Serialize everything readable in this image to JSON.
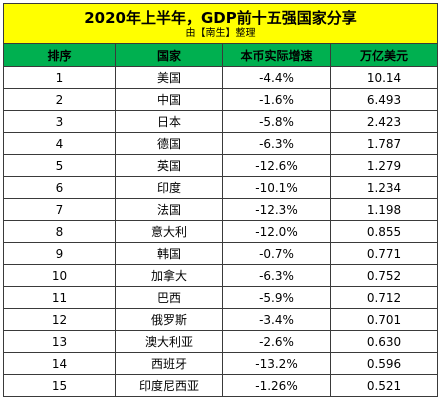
{
  "chart_data": {
    "type": "table",
    "title": "2020年上半年，GDP前十五强国家分享",
    "subtitle": "由【南生】整理",
    "columns": [
      "排序",
      "国家",
      "本币实际增速",
      "万亿美元"
    ],
    "rows": [
      {
        "rank": "1",
        "country": "美国",
        "growth": "-4.4%",
        "gdp": "10.14"
      },
      {
        "rank": "2",
        "country": "中国",
        "growth": "-1.6%",
        "gdp": "6.493"
      },
      {
        "rank": "3",
        "country": "日本",
        "growth": "-5.8%",
        "gdp": "2.423"
      },
      {
        "rank": "4",
        "country": "德国",
        "growth": "-6.3%",
        "gdp": "1.787"
      },
      {
        "rank": "5",
        "country": "英国",
        "growth": "-12.6%",
        "gdp": "1.279"
      },
      {
        "rank": "6",
        "country": "印度",
        "growth": "-10.1%",
        "gdp": "1.234"
      },
      {
        "rank": "7",
        "country": "法国",
        "growth": "-12.3%",
        "gdp": "1.198"
      },
      {
        "rank": "8",
        "country": "意大利",
        "growth": "-12.0%",
        "gdp": "0.855"
      },
      {
        "rank": "9",
        "country": "韩国",
        "growth": "-0.7%",
        "gdp": "0.771"
      },
      {
        "rank": "10",
        "country": "加拿大",
        "growth": "-6.3%",
        "gdp": "0.752"
      },
      {
        "rank": "11",
        "country": "巴西",
        "growth": "-5.9%",
        "gdp": "0.712"
      },
      {
        "rank": "12",
        "country": "俄罗斯",
        "growth": "-3.4%",
        "gdp": "0.701"
      },
      {
        "rank": "13",
        "country": "澳大利亚",
        "growth": "-2.6%",
        "gdp": "0.630"
      },
      {
        "rank": "14",
        "country": "西班牙",
        "growth": "-13.2%",
        "gdp": "0.596"
      },
      {
        "rank": "15",
        "country": "印度尼西亚",
        "growth": "-1.26%",
        "gdp": "0.521"
      }
    ]
  },
  "colors": {
    "title_background": "#FFFF00",
    "header_background": "#00B050"
  }
}
